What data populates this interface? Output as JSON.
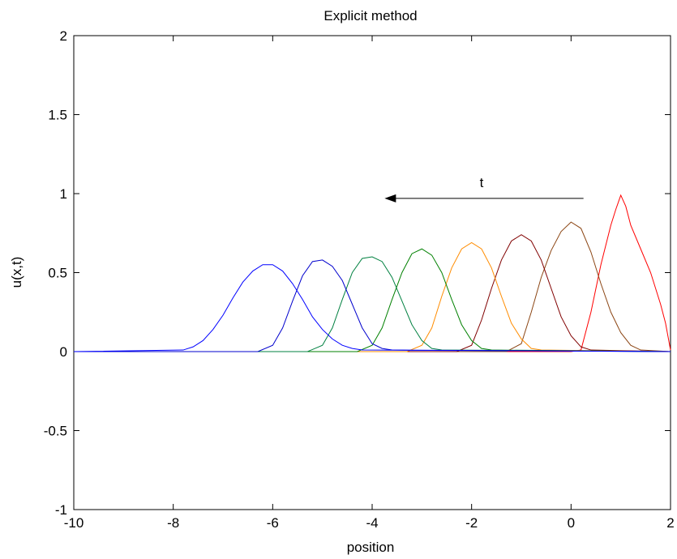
{
  "chart_data": {
    "type": "line",
    "title": "Explicit method",
    "xlabel": "position",
    "ylabel": "u(x,t)",
    "xlim": [
      -10,
      2
    ],
    "ylim": [
      -1,
      2
    ],
    "xticks": [
      -10,
      -8,
      -6,
      -4,
      -2,
      0,
      2
    ],
    "xtick_labels": [
      "-10",
      "-8",
      "-6",
      "-4",
      "-2",
      "0",
      "2"
    ],
    "yticks": [
      -1,
      -0.5,
      0,
      0.5,
      1,
      1.5,
      2
    ],
    "ytick_labels": [
      "-1",
      "-0.5",
      "0",
      "0.5",
      "1",
      "1.5",
      "2"
    ],
    "grid": false,
    "annotation": {
      "text": "t",
      "arrow_from": [
        0.25,
        0.97
      ],
      "arrow_to": [
        -3.75,
        0.97
      ]
    },
    "series": [
      {
        "color": "#ff0000",
        "points": [
          [
            -10,
            0
          ],
          [
            0,
            0
          ],
          [
            0.2,
            0.01
          ],
          [
            0.4,
            0.25
          ],
          [
            0.6,
            0.55
          ],
          [
            0.8,
            0.8
          ],
          [
            0.9,
            0.9
          ],
          [
            1.0,
            0.99
          ],
          [
            1.1,
            0.92
          ],
          [
            1.2,
            0.8
          ],
          [
            1.4,
            0.65
          ],
          [
            1.6,
            0.5
          ],
          [
            1.8,
            0.3
          ],
          [
            1.9,
            0.18
          ],
          [
            2.0,
            0.01
          ]
        ]
      },
      {
        "color": "#8b4513",
        "points": [
          [
            -10,
            0
          ],
          [
            -1.3,
            0
          ],
          [
            -1.0,
            0.05
          ],
          [
            -0.8,
            0.25
          ],
          [
            -0.6,
            0.47
          ],
          [
            -0.4,
            0.64
          ],
          [
            -0.2,
            0.76
          ],
          [
            0,
            0.82
          ],
          [
            0.2,
            0.78
          ],
          [
            0.4,
            0.63
          ],
          [
            0.6,
            0.43
          ],
          [
            0.8,
            0.25
          ],
          [
            1.0,
            0.12
          ],
          [
            1.2,
            0.04
          ],
          [
            1.4,
            0.01
          ],
          [
            2.0,
            0
          ]
        ]
      },
      {
        "color": "#800000",
        "points": [
          [
            -10,
            0
          ],
          [
            -2.3,
            0
          ],
          [
            -2.0,
            0.04
          ],
          [
            -1.8,
            0.2
          ],
          [
            -1.6,
            0.4
          ],
          [
            -1.4,
            0.58
          ],
          [
            -1.2,
            0.7
          ],
          [
            -1.0,
            0.74
          ],
          [
            -0.8,
            0.7
          ],
          [
            -0.6,
            0.58
          ],
          [
            -0.4,
            0.4
          ],
          [
            -0.2,
            0.22
          ],
          [
            0,
            0.1
          ],
          [
            0.2,
            0.03
          ],
          [
            0.4,
            0.01
          ],
          [
            2.0,
            0
          ]
        ]
      },
      {
        "color": "#ff8c00",
        "points": [
          [
            -10,
            0
          ],
          [
            -3.3,
            0
          ],
          [
            -3.0,
            0.04
          ],
          [
            -2.8,
            0.15
          ],
          [
            -2.6,
            0.35
          ],
          [
            -2.4,
            0.53
          ],
          [
            -2.2,
            0.65
          ],
          [
            -2.0,
            0.69
          ],
          [
            -1.8,
            0.65
          ],
          [
            -1.6,
            0.53
          ],
          [
            -1.4,
            0.35
          ],
          [
            -1.2,
            0.18
          ],
          [
            -1.0,
            0.08
          ],
          [
            -0.8,
            0.02
          ],
          [
            -0.6,
            0.01
          ],
          [
            2.0,
            0
          ]
        ]
      },
      {
        "color": "#008000",
        "points": [
          [
            -10,
            0
          ],
          [
            -4.3,
            0
          ],
          [
            -4.0,
            0.04
          ],
          [
            -3.8,
            0.15
          ],
          [
            -3.6,
            0.33
          ],
          [
            -3.4,
            0.5
          ],
          [
            -3.2,
            0.62
          ],
          [
            -3.0,
            0.65
          ],
          [
            -2.8,
            0.61
          ],
          [
            -2.6,
            0.5
          ],
          [
            -2.4,
            0.33
          ],
          [
            -2.2,
            0.17
          ],
          [
            -2.0,
            0.07
          ],
          [
            -1.8,
            0.02
          ],
          [
            -1.6,
            0.01
          ],
          [
            2.0,
            0
          ]
        ]
      },
      {
        "color": "#008040",
        "points": [
          [
            -10,
            0
          ],
          [
            -5.3,
            0
          ],
          [
            -5.0,
            0.04
          ],
          [
            -4.8,
            0.15
          ],
          [
            -4.6,
            0.33
          ],
          [
            -4.4,
            0.5
          ],
          [
            -4.2,
            0.59
          ],
          [
            -4.0,
            0.6
          ],
          [
            -3.8,
            0.57
          ],
          [
            -3.6,
            0.47
          ],
          [
            -3.4,
            0.32
          ],
          [
            -3.2,
            0.17
          ],
          [
            -3.0,
            0.07
          ],
          [
            -2.8,
            0.02
          ],
          [
            -2.6,
            0.01
          ],
          [
            2.0,
            0
          ]
        ]
      },
      {
        "color": "#0000cd",
        "points": [
          [
            -10,
            0
          ],
          [
            -6.3,
            0
          ],
          [
            -6.0,
            0.04
          ],
          [
            -5.8,
            0.15
          ],
          [
            -5.6,
            0.32
          ],
          [
            -5.4,
            0.48
          ],
          [
            -5.2,
            0.57
          ],
          [
            -5.0,
            0.58
          ],
          [
            -4.8,
            0.54
          ],
          [
            -4.6,
            0.45
          ],
          [
            -4.4,
            0.3
          ],
          [
            -4.2,
            0.15
          ],
          [
            -4.0,
            0.05
          ],
          [
            -3.8,
            0.02
          ],
          [
            -3.6,
            0.01
          ],
          [
            2.0,
            0
          ]
        ]
      },
      {
        "color": "#0000ff",
        "points": [
          [
            -10,
            0
          ],
          [
            -7.8,
            0.01
          ],
          [
            -7.6,
            0.03
          ],
          [
            -7.4,
            0.07
          ],
          [
            -7.2,
            0.14
          ],
          [
            -7.0,
            0.23
          ],
          [
            -6.8,
            0.34
          ],
          [
            -6.6,
            0.44
          ],
          [
            -6.4,
            0.51
          ],
          [
            -6.2,
            0.55
          ],
          [
            -6.0,
            0.55
          ],
          [
            -5.8,
            0.51
          ],
          [
            -5.6,
            0.43
          ],
          [
            -5.4,
            0.33
          ],
          [
            -5.2,
            0.22
          ],
          [
            -5.0,
            0.14
          ],
          [
            -4.8,
            0.08
          ],
          [
            -4.6,
            0.04
          ],
          [
            -4.4,
            0.02
          ],
          [
            -4.2,
            0.01
          ],
          [
            2.0,
            0
          ]
        ]
      }
    ]
  }
}
